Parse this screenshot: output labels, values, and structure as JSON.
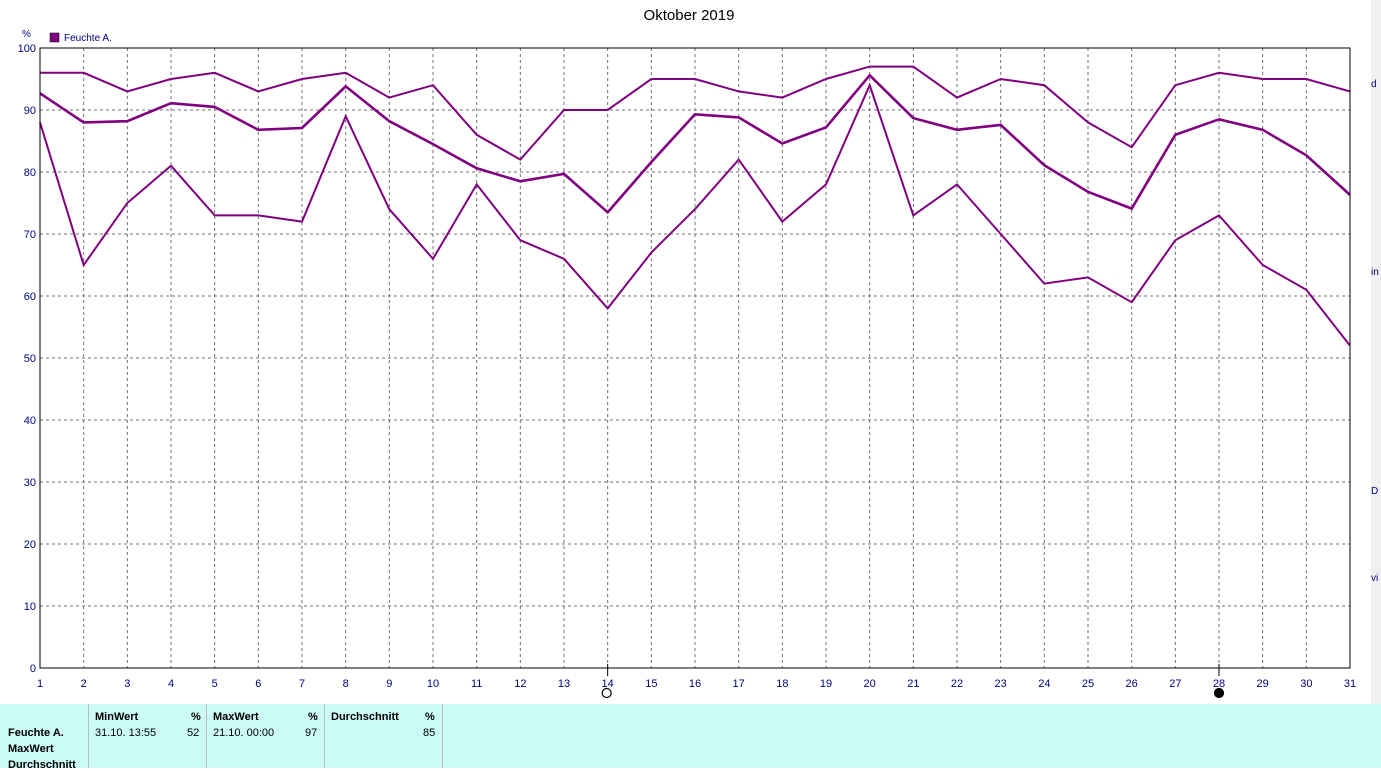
{
  "chart_data": {
    "type": "line",
    "title": "Oktober 2019",
    "ylabel": "%",
    "legend": "Feuchte A.",
    "legend_position": "top-left",
    "grid": true,
    "ylim": [
      0,
      100
    ],
    "yticks": [
      0,
      10,
      20,
      30,
      40,
      50,
      60,
      70,
      80,
      90,
      100
    ],
    "x": [
      1,
      2,
      3,
      4,
      5,
      6,
      7,
      8,
      9,
      10,
      11,
      12,
      13,
      14,
      15,
      16,
      17,
      18,
      19,
      20,
      21,
      22,
      23,
      24,
      25,
      26,
      27,
      28,
      29,
      30,
      31
    ],
    "series": [
      {
        "values": [
          96,
          96,
          93,
          95,
          96,
          93,
          95,
          96,
          92,
          94,
          86,
          82,
          90,
          90,
          95,
          95,
          93,
          92,
          95,
          97,
          97,
          92,
          95,
          94,
          88,
          84,
          94,
          96,
          95,
          95,
          93
        ]
      },
      {
        "values": [
          92.7,
          88,
          88.2,
          91.1,
          90.5,
          86.8,
          87.1,
          93.8,
          88.2,
          84.5,
          80.6,
          78.5,
          79.7,
          73.5,
          81.6,
          89.3,
          88.8,
          84.6,
          87.2,
          95.6,
          88.7,
          86.8,
          87.6,
          81.1,
          76.8,
          74.1,
          86,
          88.5,
          86.8,
          82.7,
          76.3
        ]
      },
      {
        "values": [
          88,
          65,
          75,
          81,
          73,
          73,
          72,
          89,
          74,
          66,
          78,
          69,
          66,
          58,
          67,
          74,
          82,
          72,
          78,
          94,
          73,
          78,
          70,
          62,
          63,
          59,
          69,
          73,
          65,
          61,
          52
        ]
      }
    ],
    "color": "#800080",
    "markers": [
      {
        "x": 14,
        "kind": "open-circle"
      },
      {
        "x": 28,
        "kind": "filled-circle"
      }
    ]
  },
  "edge_fragments": [
    "d",
    "in",
    "D",
    "vi"
  ],
  "stats": {
    "row_labels": [
      "Feuchte A.",
      "MaxWert",
      "Durchschnitt"
    ],
    "minwert": {
      "header": "MinWert",
      "unit": "%",
      "date": "31.10.  13:55",
      "value": "52"
    },
    "maxwert": {
      "header": "MaxWert",
      "unit": "%",
      "date": "21.10.  00:00",
      "value": "97"
    },
    "durchschnitt": {
      "header": "Durchschnitt",
      "unit": "%",
      "value": "85"
    }
  }
}
